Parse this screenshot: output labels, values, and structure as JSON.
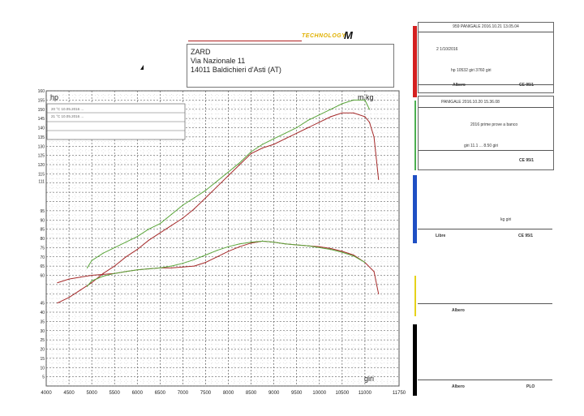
{
  "dealer": {
    "name": "ZARD",
    "street": "Via Nazionale 11",
    "city": "14011 Baldichieri d'Asti (AT)"
  },
  "brand": {
    "wordmark": "TECHNOLOGY",
    "mark": "M"
  },
  "legend_rows": [
    "20 °C  10.05.2016 ... ",
    "21 °C  10.05.2016 ... "
  ],
  "cards": [
    {
      "header": "959 PANIGALE  2016.10.21 13.05.04",
      "line1": "2 1/10/2016",
      "line2": "hp  10532 giri         3760 giri",
      "left": "Albero",
      "right": "CE 95/1"
    },
    {
      "header": "PANIGALE  2016.10.20 15.36.08",
      "line1": "2016 prime prove a banco",
      "line2": "giri    11.1 ...  8.50 giri",
      "left": "",
      "right": "CE 95/1"
    },
    {
      "header": "",
      "line1": "kg  giri",
      "line2": "",
      "left": "Libre",
      "right": "CE 95/1"
    },
    {
      "header": "",
      "line1": "",
      "line2": "",
      "left": "Albero",
      "right": ""
    },
    {
      "header": "",
      "line1": "",
      "line2": "",
      "left": "Albero",
      "right": "PLO"
    }
  ],
  "colors": {
    "run_a": "#a52a2a",
    "run_b": "#5aa53a",
    "grid_major": "#4a4a4a",
    "grid_minor": "#b8b8b8",
    "stripes": [
      "#d42020",
      "#4caf50",
      "#1f4fc4",
      "#e6d21a",
      "#000000"
    ]
  },
  "chart_data": {
    "type": "line",
    "title": "",
    "xlabel": "giri",
    "ylabel": "hp",
    "y2label": "m.kg",
    "xlim": [
      4000,
      11750
    ],
    "ylim": [
      0,
      160
    ],
    "x_ticks": [
      4000,
      4500,
      5000,
      5500,
      6000,
      6500,
      7000,
      7500,
      8000,
      8500,
      9000,
      9500,
      10000,
      10500,
      11000,
      11750
    ],
    "y_ticks": [
      0,
      5,
      10,
      15,
      20,
      25,
      30,
      35,
      40,
      45,
      50,
      55,
      60,
      65,
      70,
      75,
      80,
      85,
      90,
      95,
      100,
      105,
      110,
      115,
      120,
      125,
      130,
      135,
      140,
      145,
      150,
      155,
      160
    ],
    "y_tick_labels_shown": [
      5,
      10,
      15,
      20,
      25,
      30,
      35,
      40,
      45,
      60,
      65,
      70,
      75,
      80,
      85,
      90,
      95,
      111,
      115,
      120,
      125,
      130,
      135,
      140,
      145,
      150,
      155,
      160
    ],
    "grid": true,
    "series": [
      {
        "key": "hp_a",
        "color_key": "run_a",
        "x": [
          4250,
          4500,
          4750,
          5000,
          5250,
          5500,
          5750,
          6000,
          6250,
          6500,
          6750,
          7000,
          7250,
          7500,
          7750,
          8000,
          8250,
          8500,
          8750,
          9000,
          9250,
          9500,
          9750,
          10000,
          10250,
          10500,
          10750,
          11000,
          11100,
          11200,
          11300
        ],
        "y": [
          45,
          48,
          52,
          56,
          61,
          65,
          70,
          74,
          79,
          83,
          87,
          91,
          96,
          102,
          108,
          114,
          120,
          126,
          129,
          131,
          134,
          137,
          140,
          143,
          146,
          148,
          148,
          146,
          143,
          135,
          112
        ]
      },
      {
        "key": "hp_b",
        "color_key": "run_b",
        "x": [
          4900,
          5000,
          5250,
          5500,
          5750,
          6000,
          6250,
          6500,
          6750,
          7000,
          7250,
          7500,
          7750,
          8000,
          8250,
          8500,
          8750,
          9000,
          9250,
          9500,
          9750,
          10000,
          10250,
          10500,
          10750,
          11000,
          11100
        ],
        "y": [
          64,
          68,
          72,
          75,
          78,
          81,
          85,
          88,
          93,
          98,
          102,
          106,
          111,
          116,
          121,
          127,
          131,
          134,
          137,
          140,
          144,
          147,
          150,
          153,
          155,
          155,
          150
        ]
      },
      {
        "key": "mkg_a",
        "color_key": "run_a",
        "x": [
          4250,
          4500,
          4750,
          5000,
          5250,
          5500,
          5750,
          6000,
          6250,
          6500,
          6750,
          7000,
          7250,
          7500,
          7750,
          8000,
          8250,
          8500,
          8750,
          9000,
          9250,
          9500,
          9750,
          10000,
          10250,
          10500,
          10750,
          11000,
          11200,
          11300
        ],
        "y": [
          56,
          58,
          59,
          60,
          60.5,
          61,
          62,
          63,
          63.5,
          64,
          64,
          64.5,
          65,
          67,
          70,
          73,
          75.5,
          77.5,
          78.5,
          78,
          77,
          76.5,
          76,
          75.5,
          74.5,
          73,
          71,
          67,
          62,
          50
        ]
      },
      {
        "key": "mkg_b",
        "color_key": "run_b",
        "x": [
          4900,
          5000,
          5250,
          5500,
          5750,
          6000,
          6250,
          6500,
          6750,
          7000,
          7250,
          7500,
          7750,
          8000,
          8250,
          8500,
          8750,
          9000,
          9250,
          9500,
          9750,
          10000,
          10250,
          10500,
          10750,
          11000
        ],
        "y": [
          54,
          57,
          59.5,
          61,
          62,
          63,
          63.5,
          64,
          65,
          66.5,
          68.5,
          71,
          73.5,
          75.5,
          77,
          78,
          78.5,
          78,
          77,
          76.5,
          76,
          75,
          74,
          72.5,
          70.5,
          67
        ]
      }
    ]
  }
}
